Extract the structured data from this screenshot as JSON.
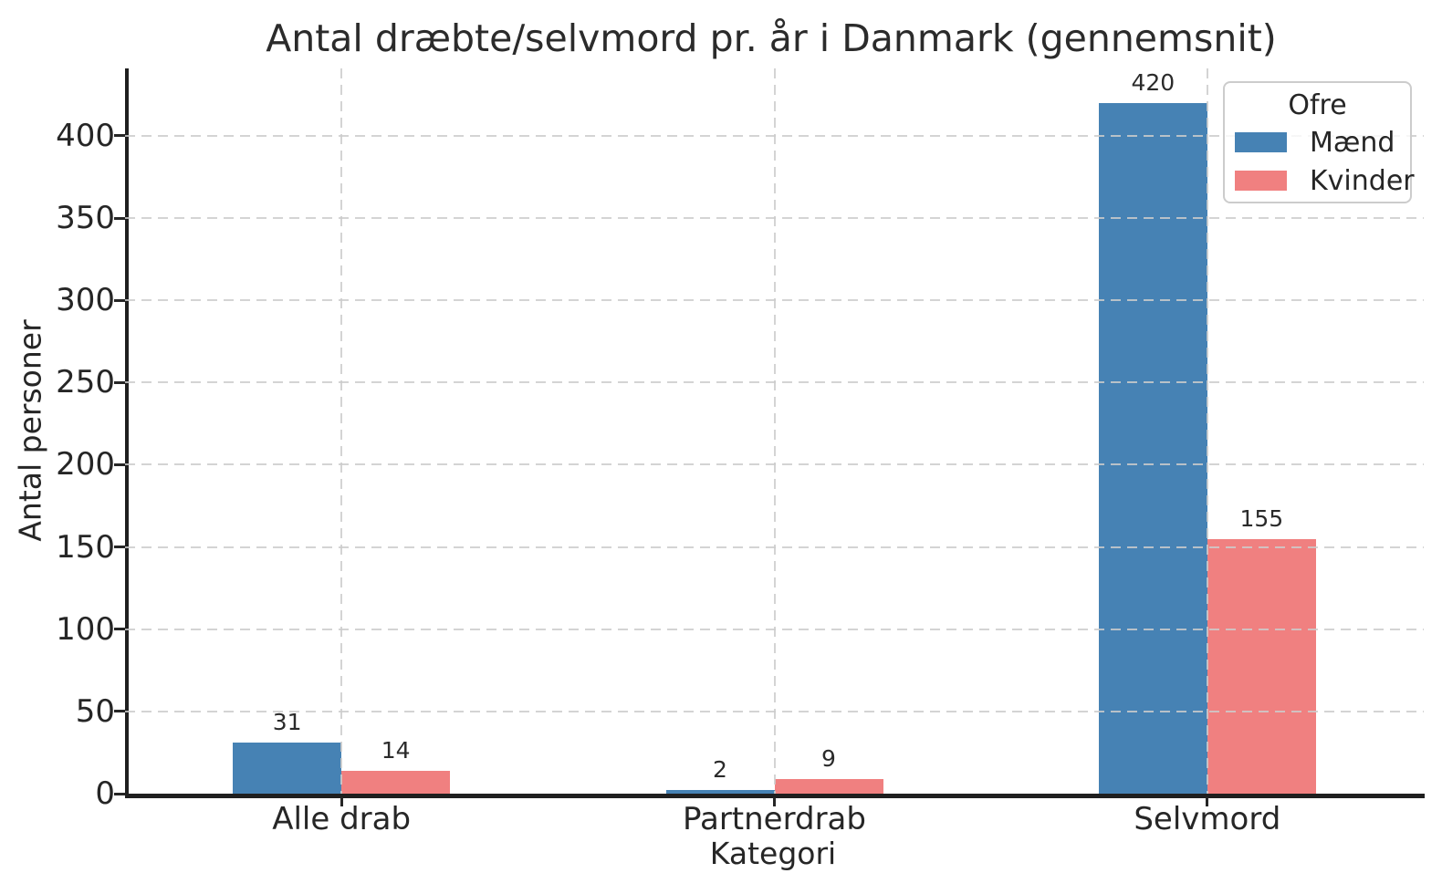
{
  "chart_data": {
    "type": "bar",
    "title": "Antal dræbte/selvmord pr. år i Danmark (gennemsnit)",
    "xlabel": "Kategori",
    "ylabel": "Antal personer",
    "categories": [
      "Alle drab",
      "Partnerdrab",
      "Selvmord"
    ],
    "series": [
      {
        "name": "Mænd",
        "color": "#4682B4",
        "values": [
          31,
          2,
          420
        ]
      },
      {
        "name": "Kvinder",
        "color": "#F08080",
        "values": [
          14,
          9,
          155
        ]
      }
    ],
    "bar_labels_shown": true,
    "ylim": [
      0,
      441
    ],
    "yticks": [
      0,
      50,
      100,
      150,
      200,
      250,
      300,
      350,
      400
    ],
    "grid": {
      "style": "dashed",
      "color": "#cccccc",
      "axes": "both",
      "on_top_of_bars": true
    },
    "legend": {
      "title": "Ofre",
      "position": "upper right"
    },
    "text_color": "#262626",
    "background_color": "#ffffff"
  }
}
